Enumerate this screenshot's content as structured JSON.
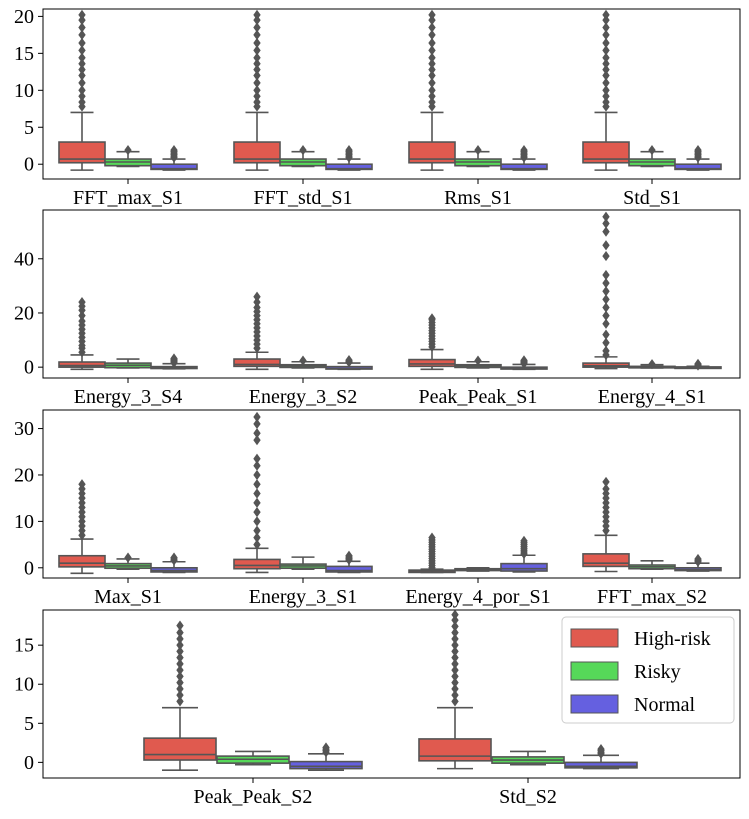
{
  "colors": {
    "high_risk": "#e05a4f",
    "risky": "#56d859",
    "normal": "#6560e0",
    "box_edge": "#555555",
    "frame": "#000000"
  },
  "legend": {
    "placement": "top-right of bottom panel",
    "entries": [
      {
        "name": "High-risk",
        "color": "#e05a4f"
      },
      {
        "name": "Risky",
        "color": "#56d859"
      },
      {
        "name": "Normal",
        "color": "#6560e0"
      }
    ]
  },
  "chart_data": [
    {
      "type": "box",
      "categories": [
        "FFT_max_S1",
        "FFT_std_S1",
        "Rms_S1",
        "Std_S1"
      ],
      "yticks": [
        0,
        5,
        10,
        15,
        20
      ],
      "ylim": [
        -2,
        21
      ],
      "series": [
        {
          "name": "High-risk",
          "boxes": [
            {
              "whislo": -0.8,
              "q1": 0.2,
              "med": 0.7,
              "q3": 3.0,
              "whishi": 7.0,
              "fliers": [
                7.8,
                8.4,
                9.2,
                10.0,
                11.0,
                12.0,
                12.8,
                13.6,
                14.4,
                15.4,
                16.4,
                17.5,
                18.5,
                19.5,
                20.2
              ]
            },
            {
              "whislo": -0.8,
              "q1": 0.2,
              "med": 0.7,
              "q3": 3.0,
              "whishi": 7.0,
              "fliers": [
                7.8,
                8.4,
                9.2,
                10.0,
                11.0,
                12.0,
                12.8,
                13.6,
                14.4,
                15.4,
                16.4,
                17.5,
                18.5,
                19.5,
                20.2
              ]
            },
            {
              "whislo": -0.8,
              "q1": 0.2,
              "med": 0.7,
              "q3": 3.0,
              "whishi": 7.0,
              "fliers": [
                7.8,
                8.4,
                9.2,
                10.0,
                11.0,
                12.0,
                12.8,
                13.6,
                14.4,
                15.4,
                16.4,
                17.5,
                18.5,
                19.5,
                20.2
              ]
            },
            {
              "whislo": -0.8,
              "q1": 0.2,
              "med": 0.7,
              "q3": 3.0,
              "whishi": 7.0,
              "fliers": [
                7.8,
                8.4,
                9.2,
                10.0,
                11.0,
                12.0,
                12.8,
                13.6,
                14.4,
                15.4,
                16.4,
                17.5,
                18.5,
                19.5,
                20.2
              ]
            }
          ]
        },
        {
          "name": "Risky",
          "boxes": [
            {
              "whislo": -0.3,
              "q1": -0.2,
              "med": 0.3,
              "q3": 0.7,
              "whishi": 1.7,
              "fliers": [
                1.9
              ]
            },
            {
              "whislo": -0.3,
              "q1": -0.2,
              "med": 0.3,
              "q3": 0.7,
              "whishi": 1.7,
              "fliers": [
                1.9
              ]
            },
            {
              "whislo": -0.3,
              "q1": -0.2,
              "med": 0.3,
              "q3": 0.7,
              "whishi": 1.7,
              "fliers": [
                1.9
              ]
            },
            {
              "whislo": -0.3,
              "q1": -0.2,
              "med": 0.3,
              "q3": 0.7,
              "whishi": 1.7,
              "fliers": [
                1.9
              ]
            }
          ]
        },
        {
          "name": "Normal",
          "boxes": [
            {
              "whislo": -0.8,
              "q1": -0.7,
              "med": -0.6,
              "q3": 0.0,
              "whishi": 0.7,
              "fliers": [
                0.9,
                1.1,
                1.3,
                1.5,
                1.7,
                1.9
              ]
            },
            {
              "whislo": -0.8,
              "q1": -0.7,
              "med": -0.6,
              "q3": 0.0,
              "whishi": 0.7,
              "fliers": [
                0.9,
                1.1,
                1.3,
                1.5,
                1.7,
                1.9
              ]
            },
            {
              "whislo": -0.8,
              "q1": -0.7,
              "med": -0.6,
              "q3": 0.0,
              "whishi": 0.7,
              "fliers": [
                0.9,
                1.1,
                1.3,
                1.5,
                1.7,
                1.9
              ]
            },
            {
              "whislo": -0.8,
              "q1": -0.7,
              "med": -0.6,
              "q3": 0.0,
              "whishi": 0.7,
              "fliers": [
                0.9,
                1.1,
                1.3,
                1.5,
                1.7,
                1.9
              ]
            }
          ]
        }
      ]
    },
    {
      "type": "box",
      "categories": [
        "Energy_3_S4",
        "Energy_3_S2",
        "Peak_Peak_S1",
        "Energy_4_S1"
      ],
      "yticks": [
        0,
        20,
        40
      ],
      "ylim": [
        -4,
        58
      ],
      "series": [
        {
          "name": "High-risk",
          "boxes": [
            {
              "whislo": -0.8,
              "q1": 0.0,
              "med": 0.6,
              "q3": 1.9,
              "whishi": 4.5,
              "fliers": [
                5.5,
                7.0,
                8.0,
                9.5,
                11.0,
                12.5,
                14.0,
                15.5,
                17.0,
                19.0,
                21.0,
                22.5,
                24.0
              ]
            },
            {
              "whislo": -0.8,
              "q1": 0.3,
              "med": 1.0,
              "q3": 3.0,
              "whishi": 5.5,
              "fliers": [
                7.0,
                8.5,
                10.0,
                11.5,
                13.0,
                14.5,
                16.0,
                17.5,
                19.0,
                20.5,
                22.0,
                24.0,
                26.0
              ]
            },
            {
              "whislo": -0.8,
              "q1": 0.3,
              "med": 1.2,
              "q3": 2.8,
              "whishi": 6.5,
              "fliers": [
                7.5,
                8.5,
                9.5,
                10.5,
                11.5,
                12.5,
                13.5,
                14.5,
                15.5,
                16.5,
                17.5,
                18.0
              ]
            },
            {
              "whislo": -0.5,
              "q1": 0.0,
              "med": 0.5,
              "q3": 1.5,
              "whishi": 3.8,
              "fliers": [
                4.5,
                6.0,
                9.0,
                12.0,
                16.0,
                19.0,
                22.0,
                25.0,
                28.0,
                31.0,
                34.0,
                41.0,
                45.0,
                50.0,
                53.0,
                55.5
              ]
            }
          ]
        },
        {
          "name": "Risky",
          "boxes": [
            {
              "whislo": -0.3,
              "q1": -0.2,
              "med": 0.7,
              "q3": 1.5,
              "whishi": 3.0,
              "fliers": []
            },
            {
              "whislo": -0.3,
              "q1": -0.1,
              "med": 0.4,
              "q3": 0.9,
              "whishi": 2.0,
              "fliers": [
                2.4
              ]
            },
            {
              "whislo": -0.3,
              "q1": -0.1,
              "med": 0.4,
              "q3": 0.9,
              "whishi": 2.0,
              "fliers": [
                2.4
              ]
            },
            {
              "whislo": -0.3,
              "q1": -0.1,
              "med": 0.0,
              "q3": 0.3,
              "whishi": 0.9,
              "fliers": [
                1.1
              ]
            }
          ]
        },
        {
          "name": "Normal",
          "boxes": [
            {
              "whislo": -0.6,
              "q1": -0.5,
              "med": -0.2,
              "q3": 0.2,
              "whishi": 1.3,
              "fliers": [
                1.6,
                2.0,
                2.4,
                2.8,
                3.2
              ]
            },
            {
              "whislo": -0.8,
              "q1": -0.7,
              "med": -0.5,
              "q3": 0.2,
              "whishi": 1.5,
              "fliers": [
                1.8,
                2.2,
                2.6
              ]
            },
            {
              "whislo": -0.8,
              "q1": -0.7,
              "med": -0.5,
              "q3": 0.0,
              "whishi": 1.0,
              "fliers": [
                1.3,
                1.7,
                2.1,
                2.5
              ]
            },
            {
              "whislo": -0.3,
              "q1": -0.2,
              "med": -0.1,
              "q3": 0.1,
              "whishi": 0.3,
              "fliers": [
                0.6,
                0.9,
                1.2
              ]
            }
          ]
        }
      ]
    },
    {
      "type": "box",
      "categories": [
        "Max_S1",
        "Energy_3_S1",
        "Energy_4_por_S1",
        "FFT_max_S2"
      ],
      "yticks": [
        0,
        10,
        20,
        30
      ],
      "ylim": [
        -2.2,
        34
      ],
      "series": [
        {
          "name": "High-risk",
          "boxes": [
            {
              "whislo": -1.2,
              "q1": 0.2,
              "med": 1.0,
              "q3": 2.6,
              "whishi": 6.2,
              "fliers": [
                7.0,
                8.0,
                9.0,
                10.0,
                11.0,
                12.0,
                13.0,
                14.0,
                15.0,
                16.0,
                17.0,
                18.0
              ]
            },
            {
              "whislo": -1.0,
              "q1": -0.2,
              "med": 0.5,
              "q3": 1.8,
              "whishi": 4.2,
              "fliers": [
                5.0,
                6.5,
                8.0,
                10.0,
                12.0,
                14.0,
                16.0,
                18.0,
                20.0,
                22.0,
                23.5,
                27.5,
                29.0,
                31.0,
                32.5
              ]
            },
            {
              "whislo": -1.0,
              "q1": -1.0,
              "med": -0.7,
              "q3": -0.5,
              "whishi": -0.3,
              "fliers": [
                0.0,
                0.5,
                1.0,
                1.5,
                2.0,
                2.5,
                3.0,
                3.5,
                4.0,
                4.5,
                5.0,
                5.5,
                6.0,
                6.5
              ]
            },
            {
              "whislo": -0.8,
              "q1": 0.3,
              "med": 1.0,
              "q3": 3.0,
              "whishi": 7.0,
              "fliers": [
                8.0,
                9.0,
                10.0,
                11.0,
                12.0,
                13.0,
                14.0,
                15.0,
                16.0,
                17.0,
                18.5
              ]
            }
          ]
        },
        {
          "name": "Risky",
          "boxes": [
            {
              "whislo": -0.3,
              "q1": -0.1,
              "med": 0.4,
              "q3": 0.9,
              "whishi": 1.9,
              "fliers": [
                2.2
              ]
            },
            {
              "whislo": -0.3,
              "q1": -0.1,
              "med": 0.4,
              "q3": 0.8,
              "whishi": 2.3,
              "fliers": []
            },
            {
              "whislo": -0.7,
              "q1": -0.6,
              "med": -0.4,
              "q3": -0.2,
              "whishi": 0.0,
              "fliers": []
            },
            {
              "whislo": -0.3,
              "q1": -0.2,
              "med": 0.2,
              "q3": 0.6,
              "whishi": 1.5,
              "fliers": []
            }
          ]
        },
        {
          "name": "Normal",
          "boxes": [
            {
              "whislo": -1.0,
              "q1": -0.9,
              "med": -0.6,
              "q3": 0.0,
              "whishi": 1.3,
              "fliers": [
                1.6,
                1.9,
                2.2
              ]
            },
            {
              "whislo": -1.0,
              "q1": -0.9,
              "med": -0.6,
              "q3": 0.3,
              "whishi": 1.4,
              "fliers": [
                1.7,
                2.0,
                2.3,
                2.6
              ]
            },
            {
              "whislo": -0.9,
              "q1": -0.7,
              "med": -0.2,
              "q3": 0.9,
              "whishi": 2.7,
              "fliers": [
                3.0,
                3.4,
                3.8,
                4.2,
                4.6,
                5.0,
                5.4,
                5.8
              ]
            },
            {
              "whislo": -0.7,
              "q1": -0.6,
              "med": -0.4,
              "q3": 0.0,
              "whishi": 1.0,
              "fliers": [
                1.3,
                1.6,
                1.9
              ]
            }
          ]
        }
      ]
    },
    {
      "type": "box",
      "categories": [
        "Peak_Peak_S2",
        "Std_S2"
      ],
      "yticks": [
        0,
        5,
        10,
        15
      ],
      "ylim": [
        -2,
        19.5
      ],
      "series": [
        {
          "name": "High-risk",
          "boxes": [
            {
              "whislo": -1.0,
              "q1": 0.3,
              "med": 1.0,
              "q3": 3.1,
              "whishi": 7.0,
              "fliers": [
                7.8,
                8.6,
                9.4,
                10.2,
                11.0,
                11.8,
                12.6,
                13.4,
                14.2,
                15.0,
                15.8,
                16.6,
                17.5
              ]
            },
            {
              "whislo": -0.8,
              "q1": 0.2,
              "med": 0.8,
              "q3": 3.0,
              "whishi": 7.0,
              "fliers": [
                7.8,
                8.6,
                9.4,
                10.2,
                11.0,
                11.8,
                12.6,
                13.4,
                14.2,
                15.0,
                15.8,
                16.6,
                17.4,
                18.2,
                18.9
              ]
            }
          ]
        },
        {
          "name": "Risky",
          "boxes": [
            {
              "whislo": -0.3,
              "q1": -0.1,
              "med": 0.4,
              "q3": 0.8,
              "whishi": 1.4,
              "fliers": []
            },
            {
              "whislo": -0.3,
              "q1": -0.1,
              "med": 0.3,
              "q3": 0.7,
              "whishi": 1.4,
              "fliers": []
            }
          ]
        },
        {
          "name": "Normal",
          "boxes": [
            {
              "whislo": -1.0,
              "q1": -0.8,
              "med": -0.5,
              "q3": 0.1,
              "whishi": 1.1,
              "fliers": [
                1.3,
                1.5,
                1.7,
                1.9
              ]
            },
            {
              "whislo": -0.8,
              "q1": -0.7,
              "med": -0.5,
              "q3": 0.0,
              "whishi": 0.9,
              "fliers": [
                1.1,
                1.3,
                1.5,
                1.7
              ]
            }
          ]
        }
      ]
    }
  ]
}
